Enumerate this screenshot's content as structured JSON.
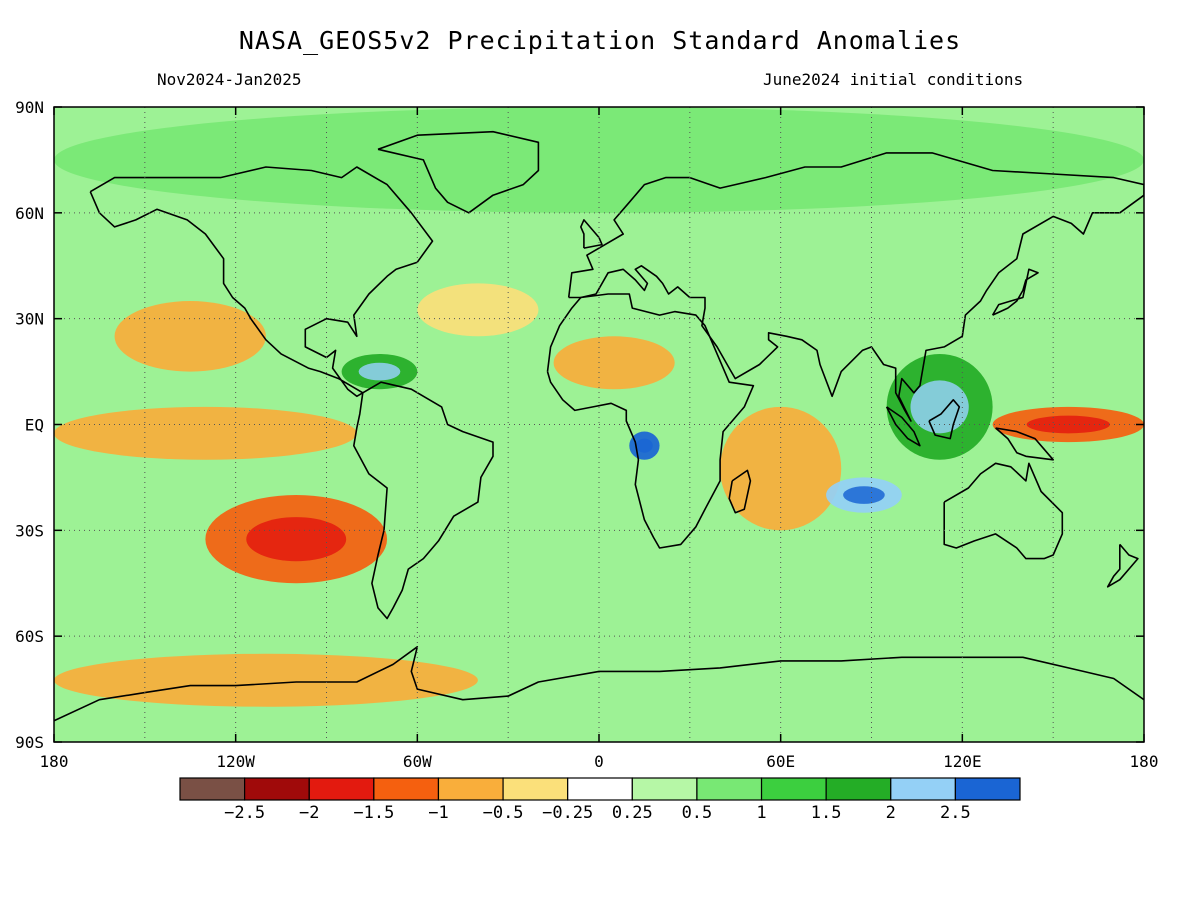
{
  "title": "NASA_GEOS5v2 Precipitation Standard Anomalies",
  "period": "Nov2024-Jan2025",
  "init_conditions": "June2024 initial conditions",
  "axes": {
    "lat_labels": [
      "90N",
      "60N",
      "30N",
      "EQ",
      "30S",
      "60S",
      "90S"
    ],
    "lon_labels": [
      "180",
      "120W",
      "60W",
      "0",
      "60E",
      "120E",
      "180"
    ]
  },
  "colorbar": {
    "labels": [
      "-2.5",
      "-2",
      "-1.5",
      "-1",
      "-0.5",
      "-0.25",
      "0.25",
      "0.5",
      "1",
      "1.5",
      "2",
      "2.5"
    ],
    "colors": [
      "#7a5045",
      "#a00a0a",
      "#e31a0f",
      "#f5600f",
      "#f9ae3b",
      "#fbe07a",
      "#ffffff",
      "#b6f7a6",
      "#78e874",
      "#3ccf3f",
      "#24ad26",
      "#94d0f6",
      "#1a65d4"
    ]
  },
  "chart_data": {
    "type": "heatmap",
    "field": "Precipitation Standard Anomalies",
    "model": "NASA_GEOS5v2",
    "season": "Nov2024-Jan2025",
    "lon_range": [
      -180,
      180
    ],
    "lat_range": [
      -90,
      90
    ],
    "levels": [
      -2.5,
      -2,
      -1.5,
      -1,
      -0.5,
      -0.25,
      0.25,
      0.5,
      1,
      1.5,
      2,
      2.5
    ],
    "gridlines": "dotted every 30 degrees",
    "regions": [
      {
        "name": "equatorial central/east Pacific",
        "lon": [
          -180,
          -80
        ],
        "lat": [
          -10,
          5
        ],
        "anomaly": -1.0
      },
      {
        "name": "western equatorial Pacific",
        "lon": [
          130,
          180
        ],
        "lat": [
          -5,
          5
        ],
        "anomaly": -1.5
      },
      {
        "name": "southeast Pacific",
        "lon": [
          -130,
          -70
        ],
        "lat": [
          -45,
          -20
        ],
        "anomaly": -1.5
      },
      {
        "name": "northeast Pacific",
        "lon": [
          -160,
          -110
        ],
        "lat": [
          15,
          35
        ],
        "anomaly": -1.0
      },
      {
        "name": "north Atlantic",
        "lon": [
          -60,
          -20
        ],
        "lat": [
          25,
          40
        ],
        "anomaly": -0.5
      },
      {
        "name": "Sahel / west Africa",
        "lon": [
          -15,
          25
        ],
        "lat": [
          10,
          25
        ],
        "anomaly": -1.0
      },
      {
        "name": "western Indian Ocean",
        "lon": [
          40,
          80
        ],
        "lat": [
          -30,
          5
        ],
        "anomaly": -1.0
      },
      {
        "name": "central Africa",
        "lon": [
          10,
          20
        ],
        "lat": [
          -10,
          -2
        ],
        "anomaly": 2.5
      },
      {
        "name": "central Indian Ocean",
        "lon": [
          75,
          100
        ],
        "lat": [
          -25,
          -15
        ],
        "anomaly": 2.0
      },
      {
        "name": "maritime continent",
        "lon": [
          95,
          130
        ],
        "lat": [
          -10,
          20
        ],
        "anomaly": 1.5
      },
      {
        "name": "Caribbean",
        "lon": [
          -85,
          -60
        ],
        "lat": [
          10,
          20
        ],
        "anomaly": 1.5
      },
      {
        "name": "southern ocean (Pacific/Atlantic)",
        "lon": [
          -180,
          -40
        ],
        "lat": [
          -80,
          -65
        ],
        "anomaly": -1.0
      },
      {
        "name": "Arctic",
        "lon": [
          -180,
          180
        ],
        "lat": [
          60,
          90
        ],
        "anomaly": 0.5
      }
    ]
  }
}
